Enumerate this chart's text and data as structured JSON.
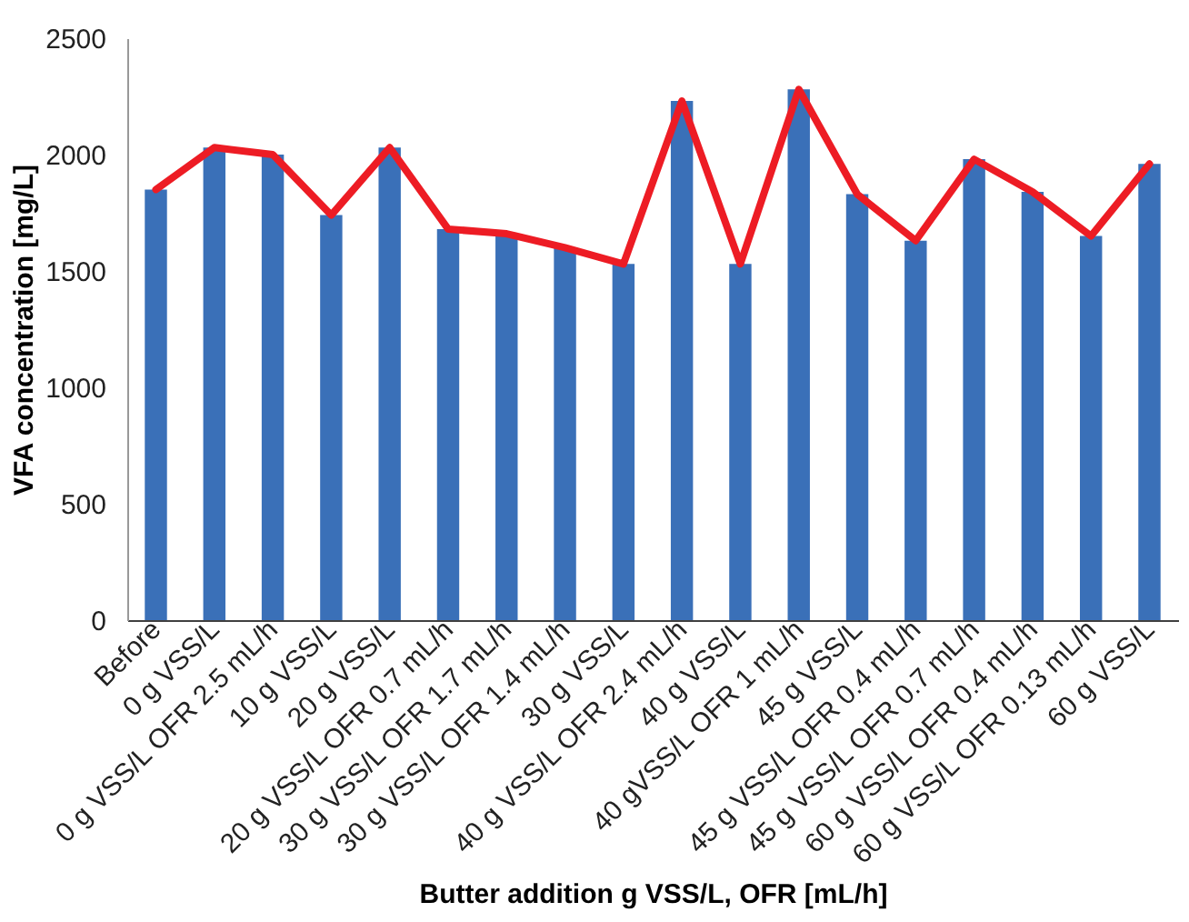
{
  "chart_data": {
    "type": "bar",
    "xlabel": "Butter addition g VSS/L, OFR [mL/h]",
    "ylabel": "VFA concentration [mg/L]",
    "categories": [
      "Before",
      "0 g VSS/L",
      "0 g VSS/L OFR 2.5 mL/h",
      "10 g VSS/L",
      "20 g VSS/L",
      "20 g VSS/L  OFR 0.7 mL/h",
      "30 g VSS/L OFR 1.7 mL/h",
      "30 g VSS/L OFR 1.4 mL/h",
      "30 g VSS/L",
      "40 g VSS/L OFR 2.4  mL/h",
      "40 g VSS/L",
      "40 gVSS/L OFR 1 mL/h",
      "45 g VSS/L",
      "45 g VSS/L OFR 0.4 mL/h",
      "45 g VSS/L OFR 0.7 mL/h",
      "60 g VSS/L OFR 0.4 mL/h",
      "60 g VSS/L OFR 0.13 mL/h",
      "60 g VSS/L"
    ],
    "series": [
      {
        "color": "#3a70b8",
        "values": [
          1850,
          2030,
          2000,
          1740,
          2030,
          1680,
          1660,
          1600,
          1530,
          2230,
          1530,
          2280,
          1830,
          1630,
          1980,
          1840,
          1650,
          1960
        ]
      },
      {
        "type": "line",
        "color": "#ed1c24",
        "values": [
          1850,
          2030,
          2000,
          1740,
          2030,
          1680,
          1660,
          1600,
          1530,
          2230,
          1530,
          2280,
          1830,
          1630,
          1980,
          1840,
          1650,
          1960
        ]
      }
    ],
    "ylim": [
      0,
      2500
    ],
    "yticks": [
      0,
      500,
      1000,
      1500,
      2000,
      2500
    ],
    "grid": false
  }
}
